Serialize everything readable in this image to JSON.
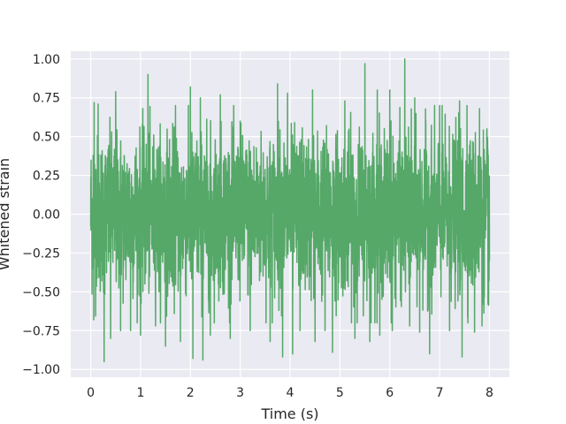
{
  "chart_data": {
    "type": "line",
    "xlabel": "Time (s)",
    "ylabel": "Whitened strain",
    "xlim": [
      -0.4,
      8.4
    ],
    "ylim": [
      -1.05,
      1.05
    ],
    "grid": true,
    "x_ticks": [
      0,
      1,
      2,
      3,
      4,
      5,
      6,
      7,
      8
    ],
    "x_tick_labels": [
      "0",
      "1",
      "2",
      "3",
      "4",
      "5",
      "6",
      "7",
      "8"
    ],
    "y_ticks": [
      1.0,
      0.75,
      0.5,
      0.25,
      0.0,
      -0.25,
      -0.5,
      -0.75,
      -1.0
    ],
    "y_tick_labels": [
      "1.00",
      "0.75",
      "0.50",
      "0.25",
      "0.00",
      "−0.25",
      "−0.50",
      "−0.75",
      "−1.00"
    ],
    "series": [
      {
        "color": "#55a868",
        "x_range": [
          0,
          8
        ],
        "peaks": [
          {
            "x": 0.05,
            "y": 0.38
          },
          {
            "x": 0.06,
            "y": -0.68
          },
          {
            "x": 0.07,
            "y": 0.72
          },
          {
            "x": 0.15,
            "y": 0.71
          },
          {
            "x": 0.27,
            "y": 0.83
          },
          {
            "x": 0.27,
            "y": -0.95
          },
          {
            "x": 0.4,
            "y": -0.8
          },
          {
            "x": 0.5,
            "y": 0.79
          },
          {
            "x": 0.6,
            "y": -0.75
          },
          {
            "x": 0.8,
            "y": -0.75
          },
          {
            "x": 1.0,
            "y": -0.78
          },
          {
            "x": 1.15,
            "y": 0.9
          },
          {
            "x": 1.3,
            "y": -0.72
          },
          {
            "x": 1.5,
            "y": 0.79
          },
          {
            "x": 1.5,
            "y": -0.85
          },
          {
            "x": 1.7,
            "y": 0.7
          },
          {
            "x": 1.8,
            "y": -0.82
          },
          {
            "x": 2.0,
            "y": 0.82
          },
          {
            "x": 2.05,
            "y": -0.93
          },
          {
            "x": 2.2,
            "y": 0.75
          },
          {
            "x": 2.25,
            "y": -0.94
          },
          {
            "x": 2.4,
            "y": -0.78
          },
          {
            "x": 2.6,
            "y": 0.77
          },
          {
            "x": 2.8,
            "y": -0.8
          },
          {
            "x": 3.0,
            "y": 0.6
          },
          {
            "x": 3.2,
            "y": -0.75
          },
          {
            "x": 3.6,
            "y": -0.82
          },
          {
            "x": 3.75,
            "y": 0.84
          },
          {
            "x": 3.85,
            "y": -0.92
          },
          {
            "x": 3.95,
            "y": 0.78
          },
          {
            "x": 4.05,
            "y": -0.9
          },
          {
            "x": 4.2,
            "y": -0.75
          },
          {
            "x": 4.45,
            "y": 0.8
          },
          {
            "x": 4.5,
            "y": -0.82
          },
          {
            "x": 4.7,
            "y": -0.75
          },
          {
            "x": 4.85,
            "y": -0.89
          },
          {
            "x": 5.1,
            "y": 0.73
          },
          {
            "x": 5.3,
            "y": 0.8
          },
          {
            "x": 5.3,
            "y": -0.8
          },
          {
            "x": 5.5,
            "y": 0.97
          },
          {
            "x": 5.6,
            "y": -0.82
          },
          {
            "x": 5.75,
            "y": 0.8
          },
          {
            "x": 5.8,
            "y": -0.78
          },
          {
            "x": 6.0,
            "y": 0.8
          },
          {
            "x": 6.05,
            "y": -0.75
          },
          {
            "x": 6.3,
            "y": 1.0
          },
          {
            "x": 6.4,
            "y": -0.72
          },
          {
            "x": 6.5,
            "y": 0.75
          },
          {
            "x": 6.6,
            "y": -0.76
          },
          {
            "x": 6.8,
            "y": -0.9
          },
          {
            "x": 7.0,
            "y": 0.7
          },
          {
            "x": 7.2,
            "y": -0.75
          },
          {
            "x": 7.4,
            "y": 0.73
          },
          {
            "x": 7.45,
            "y": -0.92
          },
          {
            "x": 7.55,
            "y": 0.7
          },
          {
            "x": 7.7,
            "y": -0.76
          },
          {
            "x": 7.8,
            "y": 0.68
          },
          {
            "x": 7.85,
            "y": -0.72
          },
          {
            "x": 7.95,
            "y": 0.55
          },
          {
            "x": 7.97,
            "y": -0.58
          },
          {
            "x": 8.0,
            "y": 0.3
          },
          {
            "x": 8.0,
            "y": -0.3
          }
        ],
        "typical_amplitude": 0.55
      }
    ]
  }
}
